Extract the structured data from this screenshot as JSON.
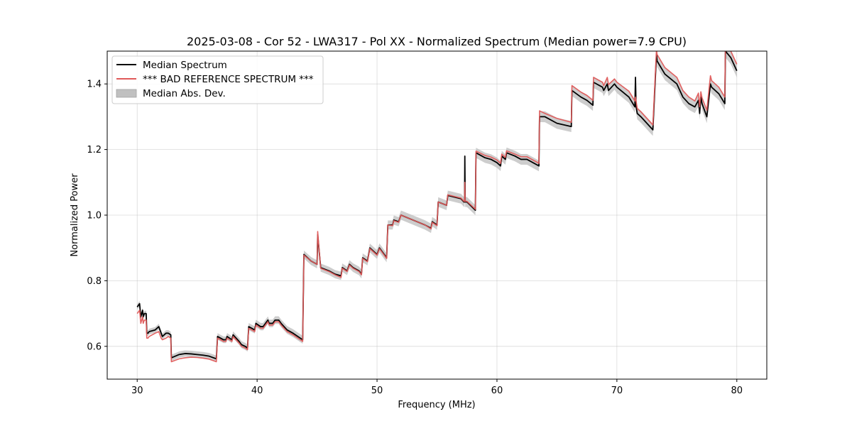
{
  "chart_data": {
    "type": "line",
    "title": "2025-03-08 - Cor 52 - LWA317 - Pol XX - Normalized Spectrum (Median power=7.9 CPU)",
    "xlabel": "Frequency (MHz)",
    "ylabel": "Normalized Power",
    "xlim": [
      27.5,
      82.5
    ],
    "ylim": [
      0.5,
      1.5
    ],
    "xticks": [
      30,
      40,
      50,
      60,
      70,
      80
    ],
    "yticks": [
      0.6,
      0.8,
      1.0,
      1.2,
      1.4
    ],
    "xtick_labels": [
      "30",
      "40",
      "50",
      "60",
      "70",
      "80"
    ],
    "ytick_labels": [
      "0.6",
      "0.8",
      "1.0",
      "1.2",
      "1.4"
    ],
    "grid": true,
    "legend_position": "top-left",
    "legend": [
      {
        "label": "Median Spectrum",
        "kind": "line",
        "color": "#000000"
      },
      {
        "label": "*** BAD REFERENCE SPECTRUM ***",
        "kind": "line",
        "color": "#e05a5a"
      },
      {
        "label": "Median Abs. Dev.",
        "kind": "band",
        "color": "#c0c0c0"
      }
    ],
    "series": [
      {
        "name": "Median Spectrum",
        "color": "#000000",
        "x": [
          30.0,
          30.2,
          30.3,
          30.45,
          30.5,
          30.6,
          30.75,
          30.8,
          30.9,
          31.0,
          31.5,
          31.8,
          32.0,
          32.1,
          32.4,
          32.6,
          32.8,
          32.85,
          33.5,
          34.0,
          34.5,
          35.0,
          35.5,
          36.0,
          36.6,
          36.7,
          37.2,
          37.4,
          37.5,
          37.9,
          38.0,
          38.5,
          38.7,
          39.0,
          39.2,
          39.3,
          39.8,
          39.9,
          40.3,
          40.5,
          40.9,
          41.0,
          41.3,
          41.5,
          41.8,
          42.0,
          42.5,
          43.0,
          43.8,
          43.9,
          44.5,
          45.0,
          45.05,
          45.3,
          46.0,
          46.5,
          47.0,
          47.1,
          47.5,
          47.7,
          48.0,
          48.5,
          48.7,
          48.8,
          49.2,
          49.4,
          50.0,
          50.2,
          50.8,
          50.9,
          51.3,
          51.4,
          51.8,
          52.0,
          53.0,
          54.0,
          54.5,
          54.6,
          55.0,
          55.1,
          55.8,
          55.9,
          57.0,
          57.25,
          57.3,
          57.32,
          57.35,
          57.5,
          58.2,
          58.25,
          59.0,
          59.5,
          60.0,
          60.3,
          60.4,
          60.7,
          60.8,
          61.5,
          62.0,
          62.5,
          63.0,
          63.5,
          63.55,
          64.0,
          65.0,
          66.2,
          66.25,
          67.0,
          67.5,
          68.0,
          68.05,
          68.8,
          68.9,
          69.2,
          69.3,
          69.8,
          70.0,
          71.0,
          71.5,
          71.55,
          71.6,
          71.7,
          72.0,
          73.0,
          73.3,
          73.35,
          74.0,
          75.0,
          75.5,
          76.0,
          76.5,
          76.8,
          76.9,
          77.0,
          77.1,
          77.2,
          77.5,
          77.8,
          77.9,
          78.5,
          79.0,
          79.05,
          79.5,
          80.0
        ],
        "y": [
          0.72,
          0.73,
          0.69,
          0.71,
          0.69,
          0.7,
          0.7,
          0.64,
          0.64,
          0.645,
          0.65,
          0.66,
          0.64,
          0.63,
          0.64,
          0.64,
          0.635,
          0.565,
          0.575,
          0.578,
          0.577,
          0.575,
          0.573,
          0.57,
          0.562,
          0.63,
          0.62,
          0.62,
          0.63,
          0.62,
          0.635,
          0.615,
          0.605,
          0.6,
          0.595,
          0.66,
          0.65,
          0.67,
          0.66,
          0.66,
          0.68,
          0.67,
          0.67,
          0.68,
          0.68,
          0.67,
          0.65,
          0.64,
          0.62,
          0.88,
          0.86,
          0.85,
          0.94,
          0.84,
          0.83,
          0.82,
          0.815,
          0.84,
          0.83,
          0.85,
          0.84,
          0.83,
          0.82,
          0.87,
          0.86,
          0.9,
          0.88,
          0.9,
          0.87,
          0.97,
          0.97,
          0.985,
          0.98,
          1.0,
          0.985,
          0.97,
          0.96,
          0.98,
          0.97,
          1.04,
          1.03,
          1.06,
          1.05,
          1.04,
          1.04,
          1.18,
          1.04,
          1.04,
          1.015,
          1.19,
          1.175,
          1.17,
          1.16,
          1.15,
          1.18,
          1.17,
          1.19,
          1.18,
          1.17,
          1.17,
          1.16,
          1.15,
          1.3,
          1.3,
          1.28,
          1.27,
          1.38,
          1.36,
          1.35,
          1.335,
          1.405,
          1.39,
          1.38,
          1.4,
          1.38,
          1.4,
          1.39,
          1.36,
          1.33,
          1.42,
          1.33,
          1.31,
          1.3,
          1.26,
          1.49,
          1.47,
          1.43,
          1.4,
          1.36,
          1.34,
          1.33,
          1.35,
          1.31,
          1.36,
          1.34,
          1.33,
          1.3,
          1.4,
          1.39,
          1.37,
          1.34,
          1.5,
          1.48,
          1.44
        ]
      },
      {
        "name": "*** BAD REFERENCE SPECTRUM ***",
        "color": "#e05a5a",
        "x": [
          30.0,
          30.2,
          30.3,
          30.45,
          30.5,
          30.6,
          30.75,
          30.8,
          30.9,
          31.0,
          31.5,
          31.8,
          32.0,
          32.1,
          32.4,
          32.6,
          32.8,
          32.85,
          33.5,
          34.0,
          34.5,
          35.0,
          35.5,
          36.0,
          36.6,
          36.7,
          37.2,
          37.4,
          37.5,
          37.9,
          38.0,
          38.5,
          38.7,
          39.0,
          39.2,
          39.3,
          39.8,
          39.9,
          40.3,
          40.5,
          40.9,
          41.0,
          41.3,
          41.5,
          41.8,
          42.0,
          42.5,
          43.0,
          43.8,
          43.9,
          44.5,
          45.0,
          45.05,
          45.3,
          46.0,
          46.5,
          47.0,
          47.1,
          47.5,
          47.7,
          48.0,
          48.5,
          48.7,
          48.8,
          49.2,
          49.4,
          50.0,
          50.2,
          50.8,
          50.9,
          51.3,
          51.4,
          51.8,
          52.0,
          53.0,
          54.0,
          54.5,
          54.6,
          55.0,
          55.1,
          55.8,
          55.9,
          57.0,
          57.25,
          57.3,
          57.32,
          57.35,
          57.5,
          58.2,
          58.25,
          59.0,
          59.5,
          60.0,
          60.3,
          60.4,
          60.7,
          60.8,
          61.5,
          62.0,
          62.5,
          63.0,
          63.5,
          63.55,
          64.0,
          65.0,
          66.2,
          66.25,
          67.0,
          67.5,
          68.0,
          68.05,
          68.8,
          68.9,
          69.2,
          69.3,
          69.8,
          70.0,
          71.0,
          71.5,
          71.55,
          71.6,
          71.7,
          72.0,
          73.0,
          73.3,
          73.35,
          74.0,
          75.0,
          75.5,
          76.0,
          76.5,
          76.8,
          76.9,
          77.0,
          77.1,
          77.2,
          77.5,
          77.8,
          77.9,
          78.5,
          79.0,
          79.05,
          79.5,
          80.0
        ],
        "y": [
          0.7,
          0.71,
          0.67,
          0.69,
          0.67,
          0.68,
          0.68,
          0.625,
          0.625,
          0.63,
          0.64,
          0.645,
          0.625,
          0.62,
          0.625,
          0.63,
          0.625,
          0.553,
          0.562,
          0.565,
          0.567,
          0.566,
          0.564,
          0.561,
          0.553,
          0.625,
          0.615,
          0.615,
          0.625,
          0.615,
          0.63,
          0.61,
          0.6,
          0.595,
          0.59,
          0.655,
          0.645,
          0.665,
          0.655,
          0.655,
          0.675,
          0.665,
          0.665,
          0.675,
          0.675,
          0.665,
          0.645,
          0.635,
          0.615,
          0.878,
          0.86,
          0.85,
          0.95,
          0.838,
          0.828,
          0.818,
          0.81,
          0.838,
          0.828,
          0.848,
          0.838,
          0.828,
          0.818,
          0.868,
          0.858,
          0.898,
          0.878,
          0.898,
          0.868,
          0.97,
          0.968,
          0.983,
          0.978,
          1.0,
          0.985,
          0.97,
          0.958,
          0.978,
          0.968,
          1.04,
          1.03,
          1.062,
          1.052,
          1.042,
          1.042,
          1.1,
          1.042,
          1.042,
          1.018,
          1.195,
          1.182,
          1.177,
          1.168,
          1.158,
          1.186,
          1.176,
          1.196,
          1.186,
          1.178,
          1.178,
          1.168,
          1.158,
          1.318,
          1.31,
          1.295,
          1.283,
          1.395,
          1.375,
          1.365,
          1.35,
          1.42,
          1.405,
          1.395,
          1.42,
          1.398,
          1.415,
          1.405,
          1.378,
          1.348,
          1.36,
          1.348,
          1.325,
          1.315,
          1.275,
          1.505,
          1.49,
          1.45,
          1.42,
          1.38,
          1.36,
          1.348,
          1.372,
          1.33,
          1.376,
          1.358,
          1.348,
          1.32,
          1.425,
          1.41,
          1.39,
          1.36,
          1.52,
          1.5,
          1.46
        ]
      }
    ],
    "mad_band": {
      "name": "Median Abs. Dev.",
      "color": "#c0c0c0",
      "note": "band widens with frequency",
      "half_width_start": 0.008,
      "half_width_end": 0.02
    }
  }
}
